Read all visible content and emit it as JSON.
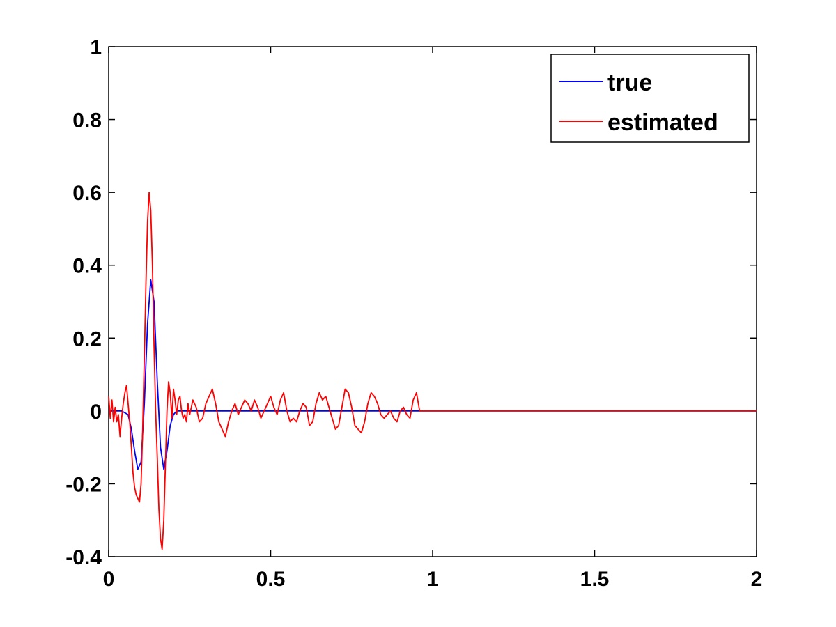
{
  "chart_data": {
    "type": "line",
    "title": "",
    "xlabel": "",
    "ylabel": "",
    "xlim": [
      0,
      2
    ],
    "ylim": [
      -0.4,
      1
    ],
    "xticks": [
      0,
      0.5,
      1,
      1.5,
      2
    ],
    "xtick_labels": [
      "0",
      "0.5",
      "1",
      "1.5",
      "2"
    ],
    "yticks": [
      -0.4,
      -0.2,
      0,
      0.2,
      0.4,
      0.6,
      0.8,
      1
    ],
    "ytick_labels": [
      "-0.4",
      "-0.2",
      "0",
      "0.2",
      "0.4",
      "0.6",
      "0.8",
      "1"
    ],
    "grid": false,
    "legend_position": "top-right",
    "series": [
      {
        "name": "true",
        "color": "#0000ff",
        "x": [
          0,
          0.02,
          0.04,
          0.06,
          0.07,
          0.08,
          0.09,
          0.1,
          0.11,
          0.12,
          0.13,
          0.14,
          0.15,
          0.16,
          0.17,
          0.18,
          0.19,
          0.2,
          0.21,
          0.22,
          0.23,
          0.25,
          0.3,
          2
        ],
        "y": [
          0,
          0,
          0,
          -0.01,
          -0.05,
          -0.11,
          -0.16,
          -0.14,
          0.02,
          0.24,
          0.36,
          0.3,
          0.08,
          -0.1,
          -0.16,
          -0.11,
          -0.04,
          -0.01,
          0,
          0,
          0,
          0,
          0,
          0
        ]
      },
      {
        "name": "estimated",
        "color": "#ff0000",
        "x": [
          0,
          0.005,
          0.01,
          0.015,
          0.02,
          0.025,
          0.03,
          0.035,
          0.04,
          0.045,
          0.05,
          0.055,
          0.06,
          0.065,
          0.07,
          0.075,
          0.08,
          0.085,
          0.09,
          0.095,
          0.1,
          0.105,
          0.11,
          0.115,
          0.12,
          0.125,
          0.13,
          0.135,
          0.14,
          0.145,
          0.15,
          0.155,
          0.16,
          0.165,
          0.17,
          0.175,
          0.18,
          0.185,
          0.19,
          0.195,
          0.2,
          0.205,
          0.21,
          0.215,
          0.22,
          0.225,
          0.23,
          0.235,
          0.24,
          0.245,
          0.25,
          0.26,
          0.27,
          0.28,
          0.29,
          0.3,
          0.31,
          0.32,
          0.33,
          0.34,
          0.35,
          0.36,
          0.37,
          0.38,
          0.39,
          0.4,
          0.41,
          0.42,
          0.43,
          0.44,
          0.45,
          0.46,
          0.47,
          0.48,
          0.49,
          0.5,
          0.51,
          0.52,
          0.53,
          0.54,
          0.55,
          0.56,
          0.57,
          0.58,
          0.59,
          0.6,
          0.61,
          0.62,
          0.63,
          0.64,
          0.65,
          0.66,
          0.67,
          0.68,
          0.69,
          0.7,
          0.71,
          0.72,
          0.73,
          0.74,
          0.75,
          0.76,
          0.77,
          0.78,
          0.79,
          0.8,
          0.81,
          0.82,
          0.83,
          0.84,
          0.85,
          0.86,
          0.87,
          0.88,
          0.89,
          0.9,
          0.91,
          0.92,
          0.93,
          0.94,
          0.95,
          0.96,
          0.97,
          0.98,
          0.99,
          1.0,
          1.01,
          2.0
        ],
        "y": [
          0.04,
          -0.02,
          0.03,
          -0.03,
          0.01,
          -0.03,
          -0.01,
          -0.07,
          -0.02,
          0.02,
          0.05,
          0.07,
          0.02,
          -0.03,
          -0.1,
          -0.17,
          -0.21,
          -0.23,
          -0.24,
          -0.25,
          -0.2,
          -0.05,
          0.15,
          0.35,
          0.52,
          0.6,
          0.55,
          0.4,
          0.18,
          0.0,
          -0.13,
          -0.27,
          -0.35,
          -0.38,
          -0.3,
          -0.15,
          0.0,
          0.08,
          0.05,
          -0.02,
          0.06,
          0.03,
          -0.01,
          0.03,
          0.04,
          0.0,
          -0.02,
          -0.01,
          -0.03,
          0.02,
          -0.01,
          0.03,
          0.01,
          -0.03,
          -0.02,
          0.02,
          0.04,
          0.06,
          0.02,
          -0.03,
          -0.05,
          -0.07,
          -0.03,
          0.0,
          0.02,
          -0.01,
          0.01,
          0.03,
          0.02,
          0.0,
          0.03,
          0.01,
          -0.02,
          0.0,
          0.02,
          0.04,
          0.01,
          -0.01,
          0.03,
          0.05,
          0.0,
          -0.03,
          -0.02,
          -0.03,
          0.0,
          0.02,
          0.01,
          -0.04,
          -0.03,
          0.02,
          0.05,
          0.03,
          0.04,
          0.01,
          -0.02,
          -0.05,
          -0.04,
          0.01,
          0.06,
          0.05,
          0.01,
          -0.04,
          -0.05,
          -0.06,
          -0.03,
          0.02,
          0.05,
          0.04,
          0.02,
          -0.01,
          -0.02,
          -0.01,
          0.0,
          -0.02,
          -0.03,
          0.0,
          0.01,
          -0.01,
          -0.02,
          0.03,
          0.05,
          0.0,
          0.0,
          0.0,
          0.0,
          0.0,
          0.0,
          0.0
        ]
      }
    ]
  }
}
